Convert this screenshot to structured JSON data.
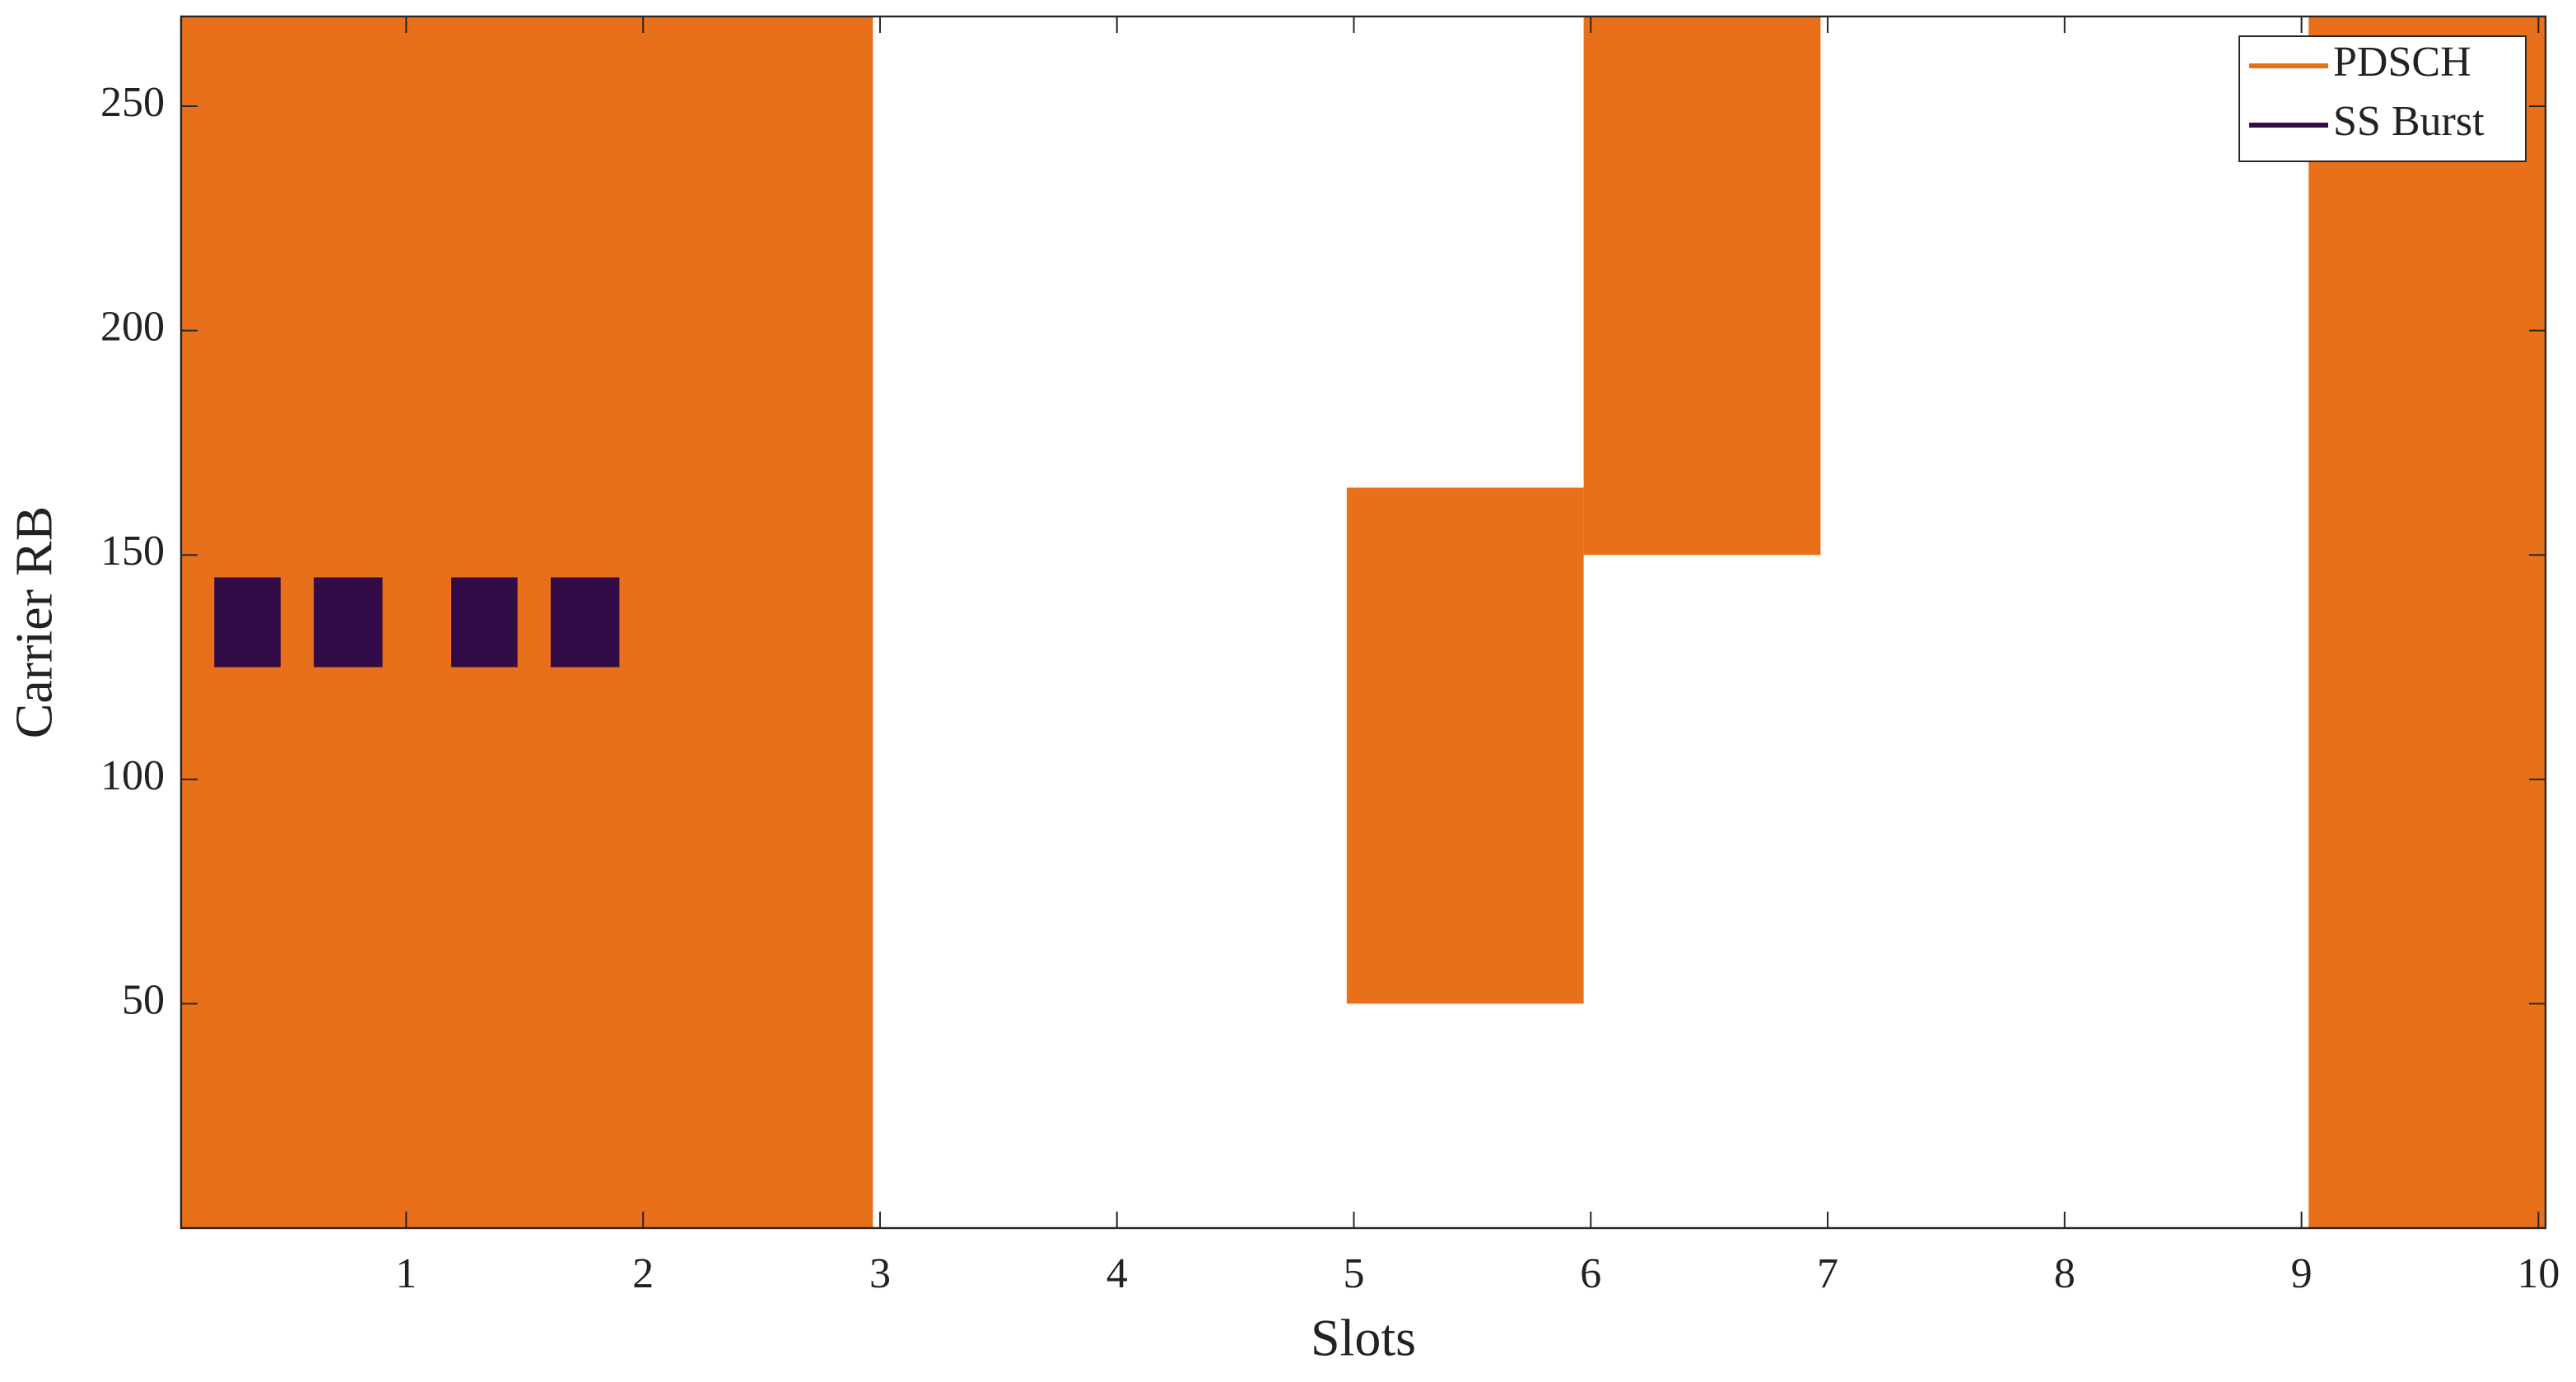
{
  "chart_data": {
    "type": "blocks",
    "xlabel": "Slots",
    "ylabel": "Carrier RB",
    "xlim": [
      0.05,
      10.03
    ],
    "ylim": [
      0,
      270
    ],
    "xticks": [
      1,
      2,
      3,
      4,
      5,
      6,
      7,
      8,
      9,
      10
    ],
    "yticks": [
      50,
      100,
      150,
      200,
      250
    ],
    "legend": "northeast",
    "series": [
      {
        "name": "PDSCH",
        "color": "#e8701a",
        "blocks": [
          {
            "x": [
              0.05,
              2.97
            ],
            "y": [
              0,
              270
            ]
          },
          {
            "x": [
              4.97,
              5.97
            ],
            "y": [
              50,
              165
            ]
          },
          {
            "x": [
              5.97,
              6.97
            ],
            "y": [
              150,
              270
            ]
          },
          {
            "x": [
              9.03,
              10.03
            ],
            "y": [
              0,
              270
            ]
          }
        ]
      },
      {
        "name": "SS Burst",
        "color": "#320a46",
        "blocks": [
          {
            "x": [
              0.19,
              0.47
            ],
            "y": [
              125,
              145
            ]
          },
          {
            "x": [
              0.61,
              0.9
            ],
            "y": [
              125,
              145
            ]
          },
          {
            "x": [
              1.19,
              1.47
            ],
            "y": [
              125,
              145
            ]
          },
          {
            "x": [
              1.61,
              1.9
            ],
            "y": [
              125,
              145
            ]
          }
        ]
      }
    ]
  }
}
